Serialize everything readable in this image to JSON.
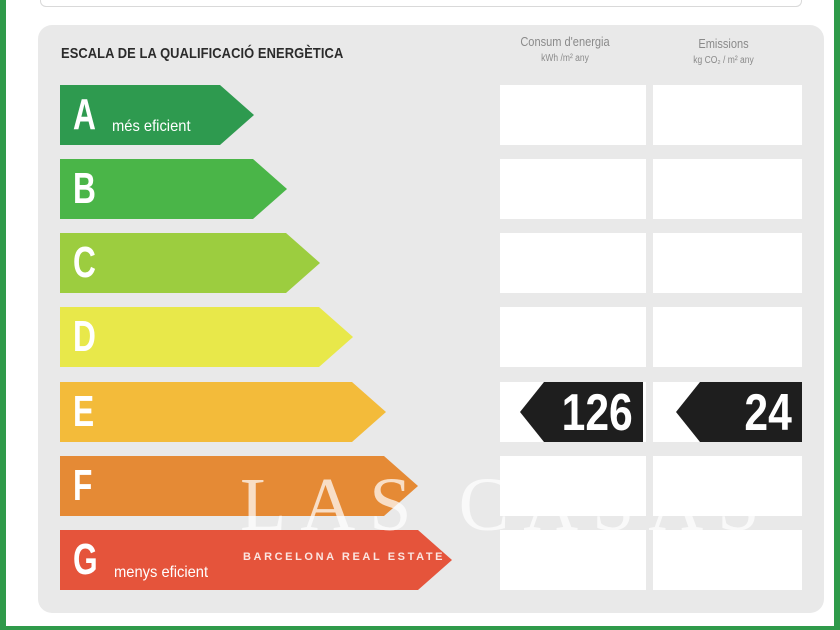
{
  "title": "ESCALA DE LA QUALIFICACIÓ ENERGÈTICA",
  "columns": {
    "energy": {
      "label": "Consum d'energia",
      "unit": "kWh /m² any"
    },
    "emissions": {
      "label": "Emissions",
      "unit": "kg CO₂ / m² any"
    }
  },
  "ratings": [
    {
      "letter": "A",
      "sub": "més eficient",
      "color": "#2e9a4f"
    },
    {
      "letter": "B",
      "sub": "",
      "color": "#4ab548"
    },
    {
      "letter": "C",
      "sub": "",
      "color": "#9ccd3f"
    },
    {
      "letter": "D",
      "sub": "",
      "color": "#e8e84a"
    },
    {
      "letter": "E",
      "sub": "",
      "color": "#f3bb3a"
    },
    {
      "letter": "F",
      "sub": "",
      "color": "#e58a35"
    },
    {
      "letter": "G",
      "sub": "menys eficient",
      "color": "#e5543b"
    }
  ],
  "current": {
    "rating": "E",
    "energy_value": "126",
    "emissions_value": "24"
  },
  "watermark": {
    "brand": "LAS CASAS",
    "tagline": "BARCELONA REAL ESTATE"
  }
}
